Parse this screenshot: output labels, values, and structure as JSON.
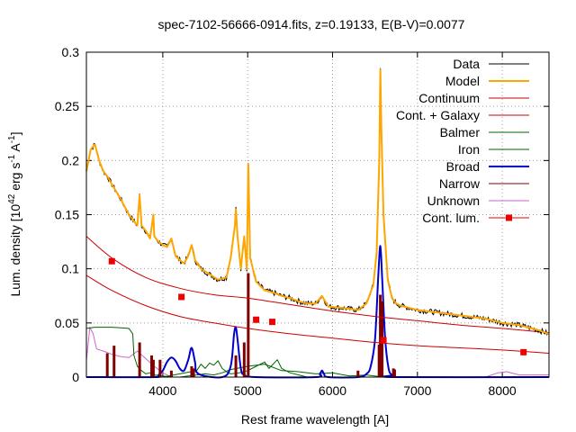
{
  "chart_data": {
    "type": "line",
    "title": "spec-7102-56666-0914.fits, z=0.19133, E(B-V)=0.0077",
    "xlabel": "Rest frame wavelength [A]",
    "ylabel": {
      "pre": "Lum. density [10",
      "sup1": "42",
      "mid": " erg s",
      "sup2": "-1",
      "mid2": " A",
      "sup3": "-1",
      "post": "]"
    },
    "xlim": [
      3100,
      8550
    ],
    "ylim": [
      0,
      0.3
    ],
    "xticks": [
      "4000",
      "5000",
      "6000",
      "7000",
      "8000"
    ],
    "xtick_values": [
      4000,
      5000,
      6000,
      7000,
      8000
    ],
    "yticks": [
      "0",
      "0.05",
      "0.1",
      "0.15",
      "0.2",
      "0.25",
      "0.3"
    ],
    "ytick_values": [
      0,
      0.05,
      0.1,
      0.15,
      0.2,
      0.25,
      0.3
    ],
    "grid": true,
    "legend_position": "top-right",
    "series": [
      {
        "name": "Data",
        "color": "#000000",
        "style": "line"
      },
      {
        "name": "Model",
        "color": "#ffa500",
        "style": "line"
      },
      {
        "name": "Continuum",
        "color": "#cc0000",
        "style": "line"
      },
      {
        "name": "Cont. + Galaxy",
        "color": "#cc0000",
        "style": "line"
      },
      {
        "name": "Balmer",
        "color": "#006400",
        "style": "line"
      },
      {
        "name": "Iron",
        "color": "#006400",
        "style": "line"
      },
      {
        "name": "Broad",
        "color": "#0000cc",
        "style": "line"
      },
      {
        "name": "Narrow",
        "color": "#800000",
        "style": "line"
      },
      {
        "name": "Unknown",
        "color": "#cc66cc",
        "style": "line"
      },
      {
        "name": "Cont. lum.",
        "color": "#ee0000",
        "style": "linepoints"
      }
    ],
    "continuum": {
      "x": [
        3100,
        3400,
        3800,
        4200,
        4600,
        5000,
        5500,
        6000,
        6500,
        7000,
        7500,
        8000,
        8550
      ],
      "y": [
        0.094,
        0.08,
        0.066,
        0.056,
        0.05,
        0.045,
        0.04,
        0.036,
        0.032,
        0.029,
        0.027,
        0.025,
        0.022
      ]
    },
    "cont_galaxy": {
      "x": [
        3100,
        3400,
        3800,
        4200,
        4600,
        5000,
        5500,
        6000,
        6500,
        7000,
        7500,
        8000,
        8550
      ],
      "y": [
        0.13,
        0.11,
        0.092,
        0.082,
        0.076,
        0.073,
        0.067,
        0.061,
        0.056,
        0.052,
        0.048,
        0.045,
        0.041
      ]
    },
    "model": {
      "x": [
        3100,
        3150,
        3200,
        3250,
        3300,
        3350,
        3400,
        3500,
        3600,
        3700,
        3727,
        3750,
        3800,
        3850,
        3889,
        3900,
        3950,
        4000,
        4050,
        4101,
        4150,
        4200,
        4250,
        4300,
        4340,
        4380,
        4450,
        4550,
        4650,
        4750,
        4800,
        4850,
        4861,
        4880,
        4920,
        4959,
        4990,
        5007,
        5030,
        5100,
        5200,
        5300,
        5400,
        5500,
        5600,
        5700,
        5800,
        5876,
        5950,
        6100,
        6300,
        6400,
        6480,
        6520,
        6550,
        6563,
        6575,
        6600,
        6650,
        6700,
        6750,
        6800,
        6900,
        7000,
        7200,
        7500,
        7800,
        8000,
        8200,
        8400,
        8550
      ],
      "y": [
        0.19,
        0.21,
        0.215,
        0.2,
        0.19,
        0.185,
        0.178,
        0.165,
        0.15,
        0.14,
        0.168,
        0.14,
        0.135,
        0.128,
        0.15,
        0.13,
        0.125,
        0.122,
        0.12,
        0.128,
        0.112,
        0.108,
        0.105,
        0.112,
        0.122,
        0.108,
        0.1,
        0.095,
        0.09,
        0.092,
        0.11,
        0.14,
        0.155,
        0.13,
        0.1,
        0.13,
        0.1,
        0.197,
        0.11,
        0.088,
        0.08,
        0.078,
        0.075,
        0.073,
        0.07,
        0.068,
        0.068,
        0.075,
        0.065,
        0.064,
        0.062,
        0.068,
        0.085,
        0.115,
        0.2,
        0.284,
        0.23,
        0.15,
        0.09,
        0.073,
        0.068,
        0.066,
        0.064,
        0.062,
        0.06,
        0.057,
        0.054,
        0.05,
        0.048,
        0.044,
        0.04
      ]
    },
    "broad": {
      "x": [
        3100,
        3900,
        3950,
        4000,
        4050,
        4101,
        4150,
        4200,
        4250,
        4300,
        4340,
        4380,
        4420,
        4700,
        4800,
        4840,
        4861,
        4880,
        4920,
        4960,
        5100,
        5800,
        5850,
        5876,
        5900,
        5950,
        6300,
        6400,
        6450,
        6500,
        6540,
        6563,
        6585,
        6620,
        6660,
        6700,
        6750,
        8550
      ],
      "y": [
        0,
        0,
        0.002,
        0.006,
        0.014,
        0.018,
        0.015,
        0.008,
        0.006,
        0.016,
        0.027,
        0.014,
        0.003,
        0,
        0.01,
        0.04,
        0.046,
        0.035,
        0.008,
        0.002,
        0,
        0,
        0.003,
        0.006,
        0.003,
        0,
        0,
        0.003,
        0.01,
        0.035,
        0.095,
        0.121,
        0.09,
        0.035,
        0.008,
        0.002,
        0,
        0
      ]
    },
    "balmer": {
      "x": [
        3100,
        3200,
        3400,
        3600,
        3646,
        3660,
        3700,
        3750,
        3800,
        3850,
        3900,
        4000,
        4100,
        4200,
        4300,
        4400,
        4500,
        4600,
        4700,
        4800,
        5000,
        5200,
        5400,
        5600,
        5800,
        6000,
        6200,
        6400,
        6600,
        8550
      ],
      "y": [
        0.045,
        0.046,
        0.046,
        0.045,
        0.04,
        0.02,
        0.01,
        0.006,
        0.003,
        0.004,
        0.002,
        0.001,
        0.0,
        0.0,
        0.001,
        0.002,
        0.003,
        0.002,
        0.004,
        0.007,
        0.01,
        0.012,
        0.006,
        0.005,
        0.003,
        0.004,
        0.001,
        0.002,
        0.0,
        0.0
      ]
    },
    "iron": {
      "x": [
        3100,
        4000,
        4200,
        4400,
        4450,
        4500,
        4550,
        4600,
        4650,
        4700,
        4750,
        4800,
        4900,
        5000,
        5100,
        5200,
        5250,
        5300,
        5350,
        5400,
        5500,
        5600,
        5700,
        8550
      ],
      "y": [
        0,
        0,
        0.003,
        0.006,
        0.012,
        0.008,
        0.013,
        0.011,
        0.015,
        0.008,
        0.005,
        0.003,
        0.004,
        0.006,
        0.01,
        0.014,
        0.008,
        0.012,
        0.016,
        0.008,
        0.004,
        0.002,
        0,
        0
      ]
    },
    "unknown": {
      "x": [
        3100,
        3140,
        3180,
        3220,
        3300,
        3400,
        3500,
        3600,
        3700,
        3800,
        3900,
        4000,
        4100,
        6000,
        7800,
        7950,
        8050,
        8200,
        8550
      ],
      "y": [
        0.015,
        0.046,
        0.04,
        0.026,
        0.024,
        0.021,
        0.019,
        0.018,
        0.024,
        0.017,
        0.01,
        0.004,
        0.0,
        0.0,
        0.0,
        0.004,
        0.005,
        0.002,
        0.002
      ]
    },
    "narrow": {
      "lines": [
        [
          3346,
          0.022
        ],
        [
          3426,
          0.029
        ],
        [
          3727,
          0.032
        ],
        [
          3869,
          0.02
        ],
        [
          3889,
          0.016
        ],
        [
          3968,
          0.016
        ],
        [
          4101,
          0.006
        ],
        [
          4340,
          0.01
        ],
        [
          4363,
          0.008
        ],
        [
          4861,
          0.02
        ],
        [
          4959,
          0.032
        ],
        [
          5007,
          0.096
        ],
        [
          6300,
          0.006
        ],
        [
          6548,
          0.03
        ],
        [
          6563,
          0.076
        ],
        [
          6584,
          0.07
        ],
        [
          6717,
          0.008
        ],
        [
          6731,
          0.007
        ]
      ]
    },
    "cont_lum": {
      "x": [
        3400,
        4220,
        5100,
        5290,
        6600,
        8250
      ],
      "y": [
        0.107,
        0.074,
        0.053,
        0.051,
        0.034,
        0.023
      ]
    }
  }
}
